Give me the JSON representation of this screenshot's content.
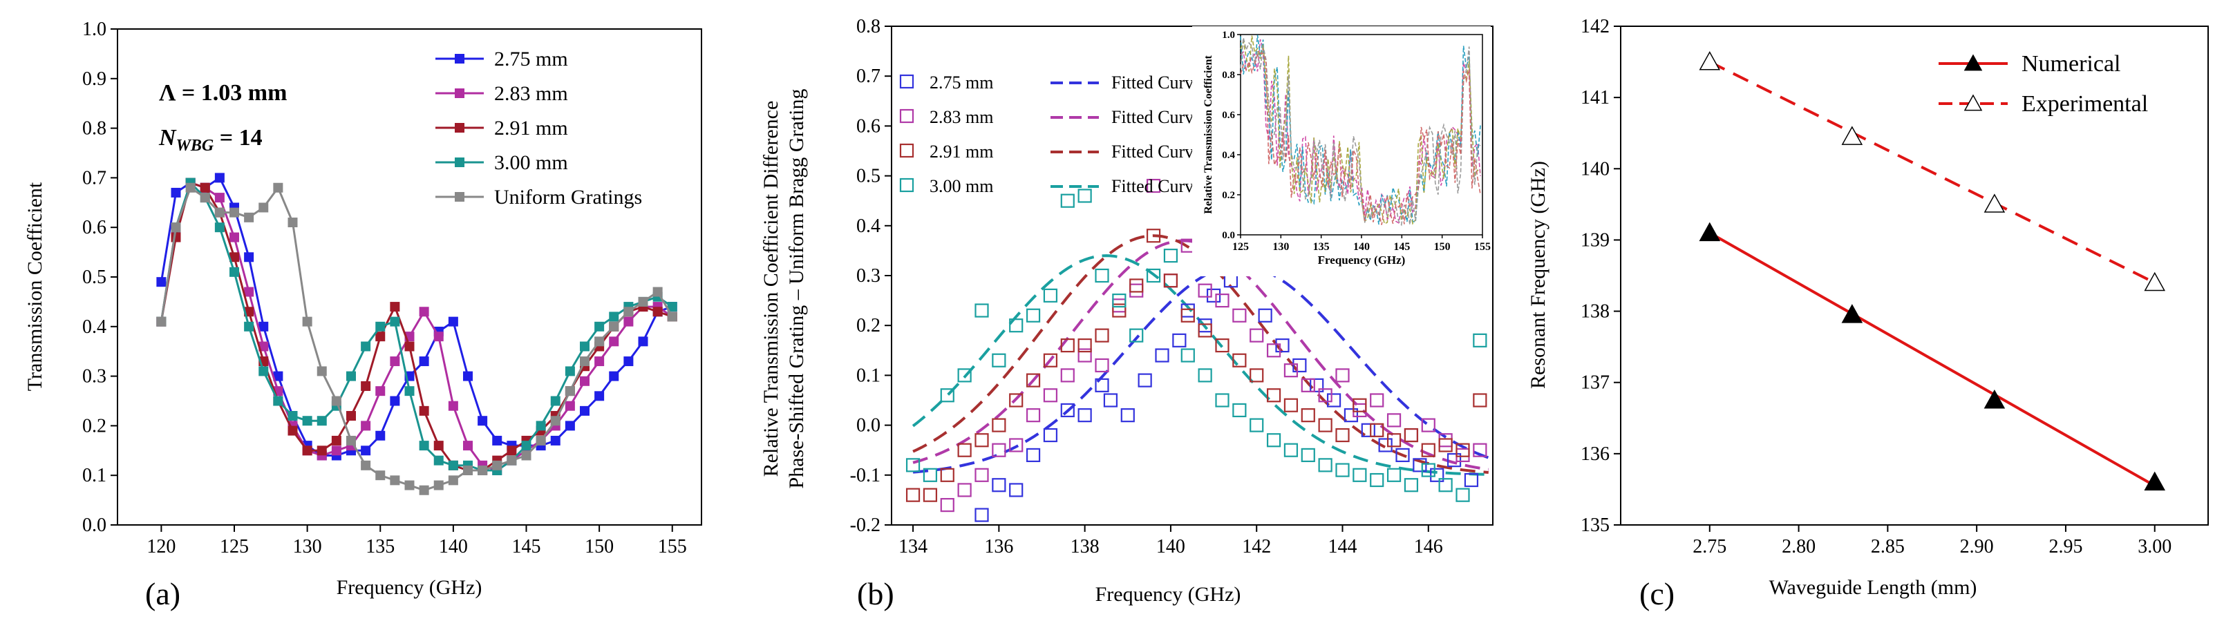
{
  "chart_data": [
    {
      "type": "line",
      "panel_label": "(a)",
      "xlabel": "Frequency (GHz)",
      "ylabel": "Transmission Coefficient",
      "xlim": [
        117,
        157
      ],
      "ylim": [
        0.0,
        1.0
      ],
      "xticks": [
        "120",
        "125",
        "130",
        "135",
        "140",
        "145",
        "150",
        "155"
      ],
      "yticks": [
        "0.0",
        "0.1",
        "0.2",
        "0.3",
        "0.4",
        "0.5",
        "0.6",
        "0.7",
        "0.8",
        "0.9",
        "1.0"
      ],
      "annotation_lambda": "Λ = 1.03 mm",
      "annotation_n_main": "N",
      "annotation_n_sub": "WBG",
      "annotation_n_value": " = 14",
      "colors": [
        "#1f1fe6",
        "#b02da0",
        "#a01a28",
        "#1a9490",
        "#888888"
      ],
      "x": [
        120,
        121,
        122,
        123,
        124,
        125,
        126,
        127,
        128,
        129,
        130,
        131,
        132,
        133,
        134,
        135,
        136,
        137,
        138,
        139,
        140,
        141,
        142,
        143,
        144,
        145,
        146,
        147,
        148,
        149,
        150,
        151,
        152,
        153,
        154,
        155
      ],
      "series": [
        {
          "name": "2.75 mm",
          "values": [
            0.49,
            0.67,
            0.69,
            0.68,
            0.7,
            0.64,
            0.54,
            0.4,
            0.3,
            0.22,
            0.16,
            0.14,
            0.14,
            0.15,
            0.15,
            0.18,
            0.25,
            0.3,
            0.33,
            0.39,
            0.41,
            0.3,
            0.21,
            0.17,
            0.16,
            0.16,
            0.16,
            0.17,
            0.2,
            0.23,
            0.26,
            0.3,
            0.33,
            0.37,
            0.43,
            0.44
          ]
        },
        {
          "name": "2.83 mm",
          "values": [
            0.41,
            0.59,
            0.69,
            0.68,
            0.66,
            0.58,
            0.47,
            0.36,
            0.27,
            0.2,
            0.15,
            0.14,
            0.15,
            0.16,
            0.2,
            0.27,
            0.33,
            0.38,
            0.43,
            0.38,
            0.24,
            0.16,
            0.12,
            0.11,
            0.13,
            0.15,
            0.17,
            0.2,
            0.24,
            0.29,
            0.33,
            0.37,
            0.41,
            0.44,
            0.44,
            0.42
          ]
        },
        {
          "name": "2.91 mm",
          "values": [
            0.41,
            0.58,
            0.69,
            0.68,
            0.63,
            0.54,
            0.43,
            0.33,
            0.25,
            0.19,
            0.15,
            0.15,
            0.17,
            0.22,
            0.28,
            0.38,
            0.44,
            0.36,
            0.23,
            0.16,
            0.12,
            0.11,
            0.11,
            0.13,
            0.15,
            0.17,
            0.19,
            0.22,
            0.27,
            0.32,
            0.36,
            0.4,
            0.43,
            0.44,
            0.43,
            0.42
          ]
        },
        {
          "name": "3.00 mm",
          "values": [
            0.41,
            0.6,
            0.69,
            0.66,
            0.6,
            0.51,
            0.4,
            0.31,
            0.25,
            0.22,
            0.21,
            0.21,
            0.24,
            0.3,
            0.36,
            0.4,
            0.41,
            0.27,
            0.16,
            0.13,
            0.12,
            0.12,
            0.11,
            0.11,
            0.13,
            0.16,
            0.2,
            0.25,
            0.31,
            0.36,
            0.4,
            0.42,
            0.44,
            0.45,
            0.46,
            0.44
          ]
        },
        {
          "name": "Uniform Gratings",
          "values": [
            0.41,
            0.6,
            0.68,
            0.66,
            0.63,
            0.63,
            0.62,
            0.64,
            0.68,
            0.61,
            0.41,
            0.31,
            0.25,
            0.17,
            0.12,
            0.1,
            0.09,
            0.08,
            0.07,
            0.08,
            0.09,
            0.11,
            0.11,
            0.12,
            0.13,
            0.14,
            0.17,
            0.21,
            0.27,
            0.33,
            0.37,
            0.4,
            0.43,
            0.45,
            0.47,
            0.42
          ]
        }
      ]
    },
    {
      "type": "scatter",
      "panel_label": "(b)",
      "xlabel": "Frequency (GHz)",
      "ylabel_line1": "Relative Transmission Coefficient Difference",
      "ylabel_line2": "Phase-Shifted Grating – Uniform Bragg Grating",
      "xlim": [
        133.5,
        147.5
      ],
      "ylim": [
        -0.2,
        0.8
      ],
      "xticks": [
        "134",
        "136",
        "138",
        "140",
        "142",
        "144",
        "146"
      ],
      "yticks": [
        "-0.2",
        "-0.1",
        "0.0",
        "0.1",
        "0.2",
        "0.3",
        "0.4",
        "0.5",
        "0.6",
        "0.7",
        "0.8"
      ],
      "colors": [
        "#3333dd",
        "#b03aa8",
        "#a83030",
        "#1aa0a0"
      ],
      "fit_label": "Fitted Curve",
      "series": [
        {
          "name": "2.75 mm",
          "fit_peak": 141.6,
          "fit_amp": 0.32,
          "points": [
            [
              135.6,
              -0.18
            ],
            [
              136.0,
              -0.12
            ],
            [
              136.4,
              -0.13
            ],
            [
              136.8,
              -0.06
            ],
            [
              137.2,
              -0.02
            ],
            [
              137.6,
              0.03
            ],
            [
              138.0,
              0.02
            ],
            [
              138.4,
              0.08
            ],
            [
              138.6,
              0.05
            ],
            [
              139.0,
              0.02
            ],
            [
              139.4,
              0.09
            ],
            [
              139.8,
              0.14
            ],
            [
              140.2,
              0.17
            ],
            [
              140.4,
              0.23
            ],
            [
              140.8,
              0.2
            ],
            [
              141.0,
              0.26
            ],
            [
              141.4,
              0.29
            ],
            [
              141.8,
              0.32
            ],
            [
              142.2,
              0.22
            ],
            [
              142.6,
              0.16
            ],
            [
              143.0,
              0.12
            ],
            [
              143.4,
              0.08
            ],
            [
              143.8,
              0.05
            ],
            [
              144.2,
              0.02
            ],
            [
              144.6,
              -0.01
            ],
            [
              145.0,
              -0.04
            ],
            [
              145.4,
              -0.06
            ],
            [
              145.8,
              -0.08
            ],
            [
              146.2,
              -0.1
            ],
            [
              146.6,
              -0.07
            ],
            [
              147.0,
              -0.11
            ]
          ]
        },
        {
          "name": "2.83 mm",
          "fit_peak": 140.3,
          "fit_amp": 0.37,
          "points": [
            [
              134.8,
              -0.16
            ],
            [
              135.2,
              -0.13
            ],
            [
              135.6,
              -0.1
            ],
            [
              136.0,
              -0.05
            ],
            [
              136.4,
              -0.04
            ],
            [
              136.8,
              0.02
            ],
            [
              137.2,
              0.06
            ],
            [
              137.6,
              0.1
            ],
            [
              138.0,
              0.14
            ],
            [
              138.4,
              0.12
            ],
            [
              138.8,
              0.24
            ],
            [
              139.2,
              0.27
            ],
            [
              139.6,
              0.48
            ],
            [
              140.0,
              0.29
            ],
            [
              140.4,
              0.36
            ],
            [
              140.8,
              0.27
            ],
            [
              141.2,
              0.25
            ],
            [
              141.6,
              0.22
            ],
            [
              142.0,
              0.18
            ],
            [
              142.4,
              0.15
            ],
            [
              142.8,
              0.11
            ],
            [
              143.2,
              0.08
            ],
            [
              143.6,
              0.06
            ],
            [
              144.0,
              0.1
            ],
            [
              144.4,
              0.03
            ],
            [
              144.8,
              0.05
            ],
            [
              145.2,
              0.01
            ],
            [
              145.6,
              -0.02
            ],
            [
              146.0,
              0.0
            ],
            [
              146.4,
              -0.03
            ],
            [
              146.8,
              -0.06
            ],
            [
              147.2,
              -0.05
            ]
          ]
        },
        {
          "name": "2.91 mm",
          "fit_peak": 139.6,
          "fit_amp": 0.38,
          "points": [
            [
              134.0,
              -0.14
            ],
            [
              134.4,
              -0.14
            ],
            [
              134.8,
              -0.1
            ],
            [
              135.2,
              -0.05
            ],
            [
              135.6,
              -0.03
            ],
            [
              136.0,
              0.0
            ],
            [
              136.4,
              0.05
            ],
            [
              136.8,
              0.09
            ],
            [
              137.2,
              0.13
            ],
            [
              137.6,
              0.16
            ],
            [
              138.0,
              0.16
            ],
            [
              138.4,
              0.18
            ],
            [
              138.8,
              0.23
            ],
            [
              139.2,
              0.28
            ],
            [
              139.6,
              0.38
            ],
            [
              140.0,
              0.29
            ],
            [
              140.4,
              0.22
            ],
            [
              140.8,
              0.19
            ],
            [
              141.2,
              0.16
            ],
            [
              141.6,
              0.13
            ],
            [
              142.0,
              0.1
            ],
            [
              142.4,
              0.06
            ],
            [
              142.8,
              0.04
            ],
            [
              143.2,
              0.02
            ],
            [
              143.6,
              0.0
            ],
            [
              144.0,
              -0.02
            ],
            [
              144.4,
              0.04
            ],
            [
              144.8,
              -0.01
            ],
            [
              145.2,
              -0.03
            ],
            [
              145.6,
              -0.02
            ],
            [
              146.0,
              -0.05
            ],
            [
              146.4,
              -0.04
            ],
            [
              146.8,
              -0.05
            ],
            [
              147.2,
              0.05
            ]
          ]
        },
        {
          "name": "3.00 mm",
          "fit_peak": 138.5,
          "fit_amp": 0.34,
          "points": [
            [
              134.0,
              -0.08
            ],
            [
              134.4,
              -0.1
            ],
            [
              134.8,
              0.06
            ],
            [
              135.2,
              0.1
            ],
            [
              135.6,
              0.23
            ],
            [
              136.0,
              0.13
            ],
            [
              136.4,
              0.2
            ],
            [
              136.8,
              0.22
            ],
            [
              137.2,
              0.26
            ],
            [
              137.6,
              0.45
            ],
            [
              138.0,
              0.46
            ],
            [
              138.4,
              0.3
            ],
            [
              138.8,
              0.25
            ],
            [
              139.2,
              0.18
            ],
            [
              139.6,
              0.3
            ],
            [
              140.0,
              0.34
            ],
            [
              140.4,
              0.14
            ],
            [
              140.8,
              0.1
            ],
            [
              141.2,
              0.05
            ],
            [
              141.6,
              0.03
            ],
            [
              142.0,
              0.0
            ],
            [
              142.4,
              -0.03
            ],
            [
              142.8,
              -0.05
            ],
            [
              143.2,
              -0.06
            ],
            [
              143.6,
              -0.08
            ],
            [
              144.0,
              -0.09
            ],
            [
              144.4,
              -0.1
            ],
            [
              144.8,
              -0.11
            ],
            [
              145.2,
              -0.1
            ],
            [
              145.6,
              -0.12
            ],
            [
              146.0,
              -0.09
            ],
            [
              146.4,
              -0.12
            ],
            [
              146.8,
              -0.14
            ],
            [
              147.2,
              0.17
            ]
          ]
        }
      ],
      "inset": {
        "xlabel": "Frequency (GHz)",
        "ylabel": "Relative Transmission Coefficient",
        "xlim": [
          125,
          155
        ],
        "ylim": [
          0.0,
          1.0
        ],
        "xticks": [
          "125",
          "130",
          "135",
          "140",
          "145",
          "150",
          "155"
        ],
        "yticks": [
          "0.0",
          "0.2",
          "0.4",
          "0.6",
          "0.8",
          "1.0"
        ],
        "colors": [
          "#d04da8",
          "#2aa0c0",
          "#a8a840",
          "#9a9a9a",
          "#d06a6a"
        ]
      }
    },
    {
      "type": "line",
      "panel_label": "(c)",
      "xlabel": "Waveguide Length (mm)",
      "ylabel": "Resonant Frequency (GHz)",
      "xlim": [
        2.7,
        3.03
      ],
      "ylim": [
        135,
        142
      ],
      "xticks": [
        "2.75",
        "2.80",
        "2.85",
        "2.90",
        "2.95",
        "3.00"
      ],
      "yticks": [
        "135",
        "136",
        "137",
        "138",
        "139",
        "140",
        "141",
        "142"
      ],
      "x": [
        2.75,
        2.83,
        2.91,
        3.0
      ],
      "series": [
        {
          "name": "Numerical",
          "values": [
            139.1,
            137.95,
            136.75,
            135.6
          ],
          "fit": [
            139.1,
            135.55
          ]
        },
        {
          "name": "Experimental",
          "values": [
            141.5,
            140.45,
            139.5,
            138.4
          ],
          "fit": [
            141.5,
            138.4
          ]
        }
      ],
      "color": "#e01515"
    }
  ]
}
